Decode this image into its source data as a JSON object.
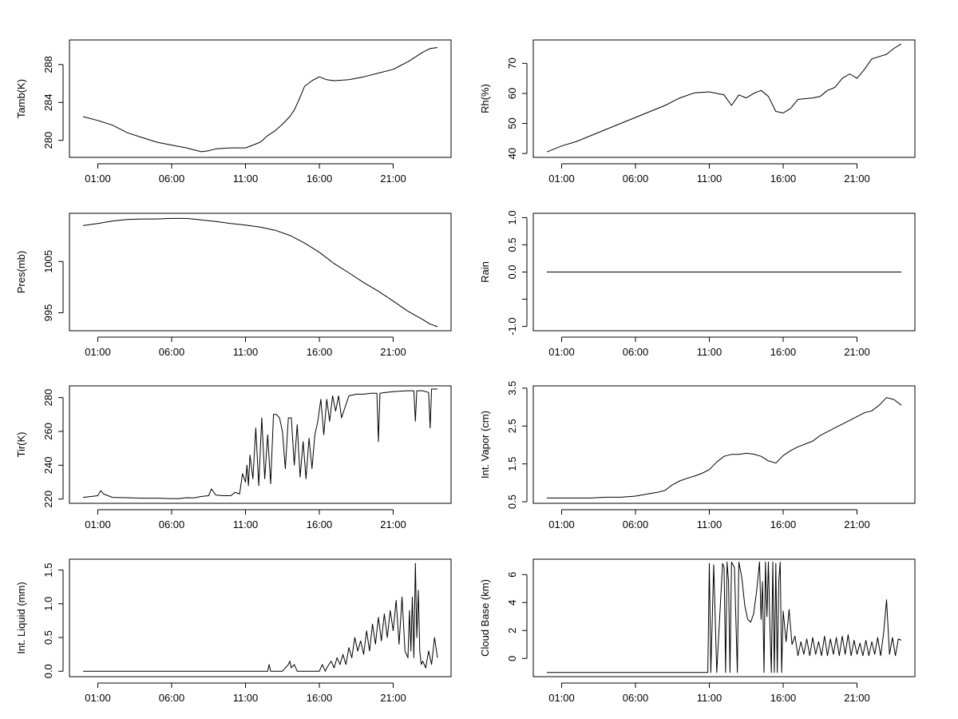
{
  "chart_data": [
    {
      "type": "line",
      "ylabel": "Tamb(K)",
      "xlabel": "",
      "x_ticks": [
        1,
        6,
        11,
        16,
        21
      ],
      "x_tick_labels": [
        "01:00",
        "06:00",
        "11:00",
        "16:00",
        "21:00"
      ],
      "xlim": [
        0,
        24
      ],
      "ylim": [
        278.2,
        290.6
      ],
      "y_ticks": [
        280,
        284,
        288
      ],
      "y_tick_labels": [
        "280",
        "284",
        "288"
      ],
      "series": [
        {
          "name": "Tamb",
          "x": [
            0,
            1,
            2,
            3,
            4,
            5,
            6,
            7,
            8,
            8.5,
            9,
            10,
            11,
            11.5,
            12,
            12.5,
            13,
            13.5,
            14,
            14.3,
            14.6,
            15,
            15.5,
            16,
            16.5,
            17,
            18,
            19,
            20,
            21,
            21.5,
            22,
            22.5,
            23,
            23.5,
            24
          ],
          "y": [
            282.5,
            282.1,
            281.6,
            280.8,
            280.3,
            279.8,
            279.5,
            279.2,
            278.8,
            278.9,
            279.1,
            279.2,
            279.2,
            279.5,
            279.8,
            280.5,
            281,
            281.7,
            282.5,
            283.2,
            284.2,
            285.7,
            286.3,
            286.7,
            286.4,
            286.3,
            286.4,
            286.7,
            287.1,
            287.5,
            287.9,
            288.3,
            288.8,
            289.3,
            289.7,
            289.8
          ]
        }
      ]
    },
    {
      "type": "line",
      "ylabel": "Rh(%)",
      "xlabel": "",
      "x_ticks": [
        1,
        6,
        11,
        16,
        21
      ],
      "x_tick_labels": [
        "01:00",
        "06:00",
        "11:00",
        "16:00",
        "21:00"
      ],
      "xlim": [
        0,
        24
      ],
      "ylim": [
        38.7,
        77.8
      ],
      "y_ticks": [
        40,
        50,
        60,
        70
      ],
      "y_tick_labels": [
        "40",
        "50",
        "60",
        "70"
      ],
      "series": [
        {
          "name": "Rh",
          "x": [
            0,
            1,
            2,
            3,
            4,
            5,
            6,
            7,
            8,
            9,
            10,
            11,
            11.5,
            12,
            12.5,
            13,
            13.5,
            14,
            14.5,
            15,
            15.5,
            16,
            16.5,
            17,
            18,
            18.5,
            19,
            19.5,
            20,
            20.5,
            21,
            21.5,
            22,
            23,
            23.5,
            24
          ],
          "y": [
            40.5,
            42.5,
            44,
            46,
            48,
            50,
            52,
            54,
            56,
            58.5,
            60.2,
            60.5,
            60,
            59.5,
            56,
            59.5,
            58.5,
            60,
            61,
            59,
            54,
            53.5,
            55,
            58,
            58.5,
            59,
            61,
            62,
            65,
            66.5,
            65,
            68,
            71.5,
            73,
            75,
            76.5
          ]
        }
      ]
    },
    {
      "type": "line",
      "ylabel": "Pres(mb)",
      "xlabel": "",
      "x_ticks": [
        1,
        6,
        11,
        16,
        21
      ],
      "x_tick_labels": [
        "01:00",
        "06:00",
        "11:00",
        "16:00",
        "21:00"
      ],
      "xlim": [
        0,
        24
      ],
      "ylim": [
        991.5,
        1014.4
      ],
      "y_ticks": [
        995,
        1005
      ],
      "y_tick_labels": [
        "995",
        "1005"
      ],
      "series": [
        {
          "name": "Pres",
          "x": [
            0,
            1,
            2,
            3,
            4,
            5,
            6,
            7,
            8,
            9,
            10,
            11,
            12,
            13,
            14,
            15,
            16,
            17,
            18,
            19,
            20,
            21,
            22,
            23,
            23.5,
            24
          ],
          "y": [
            1012,
            1012.4,
            1012.9,
            1013.2,
            1013.3,
            1013.3,
            1013.4,
            1013.4,
            1013.1,
            1012.8,
            1012.4,
            1012.1,
            1011.7,
            1011.1,
            1010.1,
            1008.6,
            1006.8,
            1004.6,
            1002.8,
            1000.9,
            999.2,
            997.3,
            995.3,
            993.7,
            992.8,
            992.3
          ]
        }
      ]
    },
    {
      "type": "line",
      "ylabel": "Rain",
      "xlabel": "",
      "x_ticks": [
        1,
        6,
        11,
        16,
        21
      ],
      "x_tick_labels": [
        "01:00",
        "06:00",
        "11:00",
        "16:00",
        "21:00"
      ],
      "xlim": [
        0,
        24
      ],
      "ylim": [
        -1.08,
        1.08
      ],
      "y_ticks": [
        -1,
        -0.5,
        0,
        0.5,
        1
      ],
      "y_tick_labels": [
        "-1.0",
        "",
        "0.0",
        "0.5",
        "1.0"
      ],
      "series": [
        {
          "name": "Rain",
          "x": [
            0,
            24
          ],
          "y": [
            0,
            0
          ]
        }
      ]
    },
    {
      "type": "line",
      "ylabel": "Tir(K)",
      "xlabel": "",
      "x_ticks": [
        1,
        6,
        11,
        16,
        21
      ],
      "x_tick_labels": [
        "01:00",
        "06:00",
        "11:00",
        "16:00",
        "21:00"
      ],
      "xlim": [
        0,
        24
      ],
      "ylim": [
        217.5,
        286.9
      ],
      "y_ticks": [
        220,
        240,
        260,
        280
      ],
      "y_tick_labels": [
        "220",
        "240",
        "260",
        "280"
      ],
      "series": [
        {
          "name": "Tir",
          "x": [
            0,
            1,
            1.2,
            1.4,
            2,
            3,
            4,
            5,
            6,
            6.5,
            7,
            7.5,
            8,
            8.5,
            8.7,
            9,
            9.5,
            10,
            10.3,
            10.6,
            10.8,
            11,
            11.1,
            11.2,
            11.3,
            11.5,
            11.7,
            11.9,
            12.1,
            12.3,
            12.5,
            12.7,
            12.9,
            13.1,
            13.3,
            13.5,
            13.7,
            13.9,
            14.1,
            14.3,
            14.5,
            14.7,
            14.9,
            15.1,
            15.3,
            15.5,
            15.7,
            15.9,
            16.1,
            16.3,
            16.5,
            16.7,
            16.9,
            17.1,
            17.3,
            17.5,
            18,
            18.5,
            19,
            19.5,
            19.9,
            20,
            20.1,
            20.5,
            21,
            21.5,
            22,
            22.4,
            22.5,
            22.6,
            23,
            23.4,
            23.5,
            23.6,
            24
          ],
          "y": [
            221,
            222,
            225,
            223,
            221,
            220.8,
            220.5,
            220.5,
            220.3,
            220.3,
            220.8,
            220.7,
            221.5,
            222,
            226,
            222.3,
            222,
            222,
            224,
            223,
            235,
            230,
            240,
            228,
            246,
            232,
            262,
            228,
            268,
            232,
            258,
            229,
            270,
            270,
            268,
            260,
            238,
            268,
            268,
            240,
            264,
            233,
            254,
            232,
            256,
            238,
            258,
            266,
            279,
            258,
            279,
            266,
            281,
            272,
            281,
            268,
            281,
            282,
            282,
            282.5,
            282.5,
            254,
            282.5,
            283,
            283.5,
            283.8,
            284,
            284,
            266,
            284,
            284,
            283,
            262,
            285,
            285
          ]
        }
      ]
    },
    {
      "type": "line",
      "ylabel": "Int. Vapor (cm)",
      "xlabel": "",
      "x_ticks": [
        1,
        6,
        11,
        16,
        21
      ],
      "x_tick_labels": [
        "01:00",
        "06:00",
        "11:00",
        "16:00",
        "21:00"
      ],
      "xlim": [
        0,
        24
      ],
      "ylim": [
        0.46,
        3.56
      ],
      "y_ticks": [
        0.5,
        1.5,
        2.5,
        3.5
      ],
      "y_tick_labels": [
        "0.5",
        "1.5",
        "2.5",
        "3.5"
      ],
      "series": [
        {
          "name": "Vapor",
          "x": [
            0,
            1,
            2,
            3,
            4,
            5,
            6,
            7,
            7.5,
            8,
            8.5,
            9,
            9.5,
            10,
            10.5,
            11,
            11.5,
            12,
            12.5,
            13,
            13.5,
            14,
            14.5,
            15,
            15.5,
            16,
            16.5,
            17,
            18,
            18.5,
            19,
            19.5,
            20,
            20.5,
            21,
            21.5,
            22,
            22.5,
            23,
            23.5,
            24
          ],
          "y": [
            0.6,
            0.6,
            0.6,
            0.6,
            0.62,
            0.62,
            0.65,
            0.72,
            0.75,
            0.8,
            0.95,
            1.05,
            1.12,
            1.18,
            1.25,
            1.35,
            1.55,
            1.7,
            1.75,
            1.75,
            1.78,
            1.76,
            1.7,
            1.58,
            1.52,
            1.72,
            1.85,
            1.95,
            2.1,
            2.25,
            2.35,
            2.45,
            2.55,
            2.65,
            2.75,
            2.85,
            2.9,
            3.05,
            3.25,
            3.2,
            3.05
          ]
        }
      ]
    },
    {
      "type": "line",
      "ylabel": "Int. Liquid (mm)",
      "xlabel": "",
      "x_ticks": [
        1,
        6,
        11,
        16,
        21
      ],
      "x_tick_labels": [
        "01:00",
        "06:00",
        "11:00",
        "16:00",
        "21:00"
      ],
      "xlim": [
        0,
        24
      ],
      "ylim": [
        -0.08,
        1.66
      ],
      "y_ticks": [
        0,
        0.5,
        1,
        1.5
      ],
      "y_tick_labels": [
        "0.0",
        "0.5",
        "1.0",
        "1.5"
      ],
      "series": [
        {
          "name": "Liquid",
          "x": [
            0,
            12,
            12.5,
            12.6,
            12.7,
            13.5,
            13.9,
            14,
            14.1,
            14.3,
            14.5,
            16,
            16.2,
            16.4,
            16.5,
            16.8,
            17,
            17.2,
            17.4,
            17.6,
            17.8,
            18,
            18.2,
            18.4,
            18.6,
            18.8,
            19,
            19.2,
            19.4,
            19.6,
            19.8,
            20,
            20.2,
            20.4,
            20.6,
            20.8,
            21,
            21.2,
            21.4,
            21.6,
            21.8,
            22,
            22.1,
            22.2,
            22.3,
            22.4,
            22.5,
            22.6,
            22.7,
            22.8,
            22.9,
            23,
            23.2,
            23.4,
            23.6,
            23.8,
            24
          ],
          "y": [
            0,
            0,
            0,
            0.1,
            0,
            0,
            0.1,
            0.15,
            0.05,
            0.1,
            0,
            0,
            0.1,
            0,
            0.05,
            0.15,
            0.05,
            0.2,
            0.1,
            0.25,
            0.1,
            0.35,
            0.2,
            0.5,
            0.3,
            0.45,
            0.25,
            0.6,
            0.3,
            0.7,
            0.4,
            0.8,
            0.45,
            0.85,
            0.5,
            0.9,
            0.6,
            1.05,
            0.4,
            1.1,
            0.3,
            0.2,
            0.9,
            0.3,
            1.1,
            0.2,
            1.6,
            0.5,
            1.2,
            0.3,
            0.1,
            0.15,
            0.05,
            0.3,
            0.1,
            0.5,
            0.2
          ]
        }
      ]
    },
    {
      "type": "line",
      "ylabel": "Cloud Base (km)",
      "xlabel": "",
      "x_ticks": [
        1,
        6,
        11,
        16,
        21
      ],
      "x_tick_labels": [
        "01:00",
        "06:00",
        "11:00",
        "16:00",
        "21:00"
      ],
      "xlim": [
        0,
        24
      ],
      "ylim": [
        -1.3,
        7.1
      ],
      "y_ticks": [
        0,
        2,
        4,
        6
      ],
      "y_tick_labels": [
        "0",
        "2",
        "4",
        "6"
      ],
      "series": [
        {
          "name": "CloudBase",
          "x": [
            0,
            10.9,
            11,
            11.1,
            11.3,
            11.5,
            11.9,
            12,
            12.1,
            12.2,
            12.3,
            12.4,
            12.5,
            12.7,
            12.9,
            13,
            13.2,
            13.4,
            13.6,
            13.8,
            14,
            14.2,
            14.4,
            14.5,
            14.6,
            14.7,
            14.8,
            14.9,
            15,
            15.1,
            15.2,
            15.3,
            15.4,
            15.5,
            15.6,
            15.7,
            15.8,
            15.9,
            16,
            16.2,
            16.4,
            16.6,
            16.8,
            17,
            17.2,
            17.4,
            17.6,
            17.8,
            18,
            18.2,
            18.4,
            18.6,
            18.8,
            19,
            19.2,
            19.4,
            19.6,
            19.8,
            20,
            20.2,
            20.4,
            20.6,
            20.8,
            21,
            21.2,
            21.4,
            21.6,
            21.8,
            22,
            22.2,
            22.4,
            22.6,
            22.8,
            23,
            23.2,
            23.4,
            23.6,
            23.8,
            24
          ],
          "y": [
            -1,
            -1,
            6.8,
            -1,
            6.7,
            -1,
            6.8,
            6.5,
            -1,
            6.9,
            5.5,
            -1,
            6.9,
            6.5,
            -1,
            6.9,
            5.8,
            3.8,
            2.8,
            2.6,
            3.2,
            4.8,
            6.9,
            2.8,
            5.5,
            -1,
            6.9,
            3,
            6.9,
            2.5,
            -1,
            6.9,
            -1,
            6.8,
            -1,
            5.5,
            6.9,
            -1,
            3.4,
            1.2,
            3.5,
            1,
            1.6,
            0.2,
            1.2,
            0.3,
            1.4,
            0.2,
            1.5,
            0.3,
            1.2,
            0.2,
            1.6,
            0.2,
            1.4,
            0.3,
            1.5,
            0.2,
            1.6,
            0.3,
            1.7,
            0.2,
            1.3,
            0.3,
            1.1,
            0.2,
            1.3,
            0.2,
            1.2,
            0.3,
            1.5,
            0.2,
            1.8,
            4.2,
            0.3,
            1.5,
            0.2,
            1.4,
            1.3
          ]
        }
      ]
    }
  ]
}
